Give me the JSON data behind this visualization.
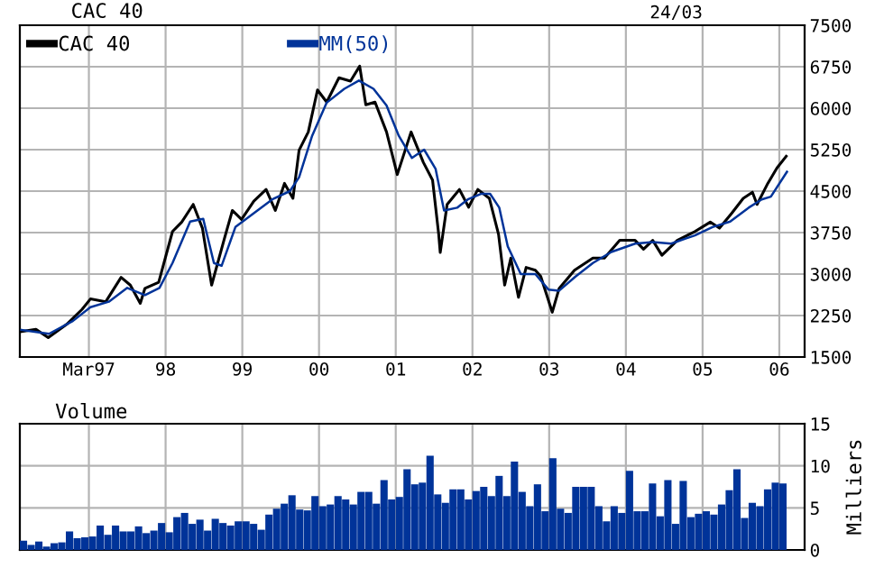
{
  "chart_data": [
    {
      "type": "line",
      "title": "CAC 40",
      "subtitle": "24/03",
      "legend": "top left",
      "grid": true,
      "line_style": "solid",
      "xlim": [
        1996.1,
        2006.33
      ],
      "xticks": [
        {
          "value": 1997,
          "label": "Mar97"
        },
        {
          "value": 1998,
          "label": "98"
        },
        {
          "value": 1999,
          "label": "99"
        },
        {
          "value": 2000,
          "label": "00"
        },
        {
          "value": 2001,
          "label": "01"
        },
        {
          "value": 2002,
          "label": "02"
        },
        {
          "value": 2003,
          "label": "03"
        },
        {
          "value": 2004,
          "label": "04"
        },
        {
          "value": 2005,
          "label": "05"
        },
        {
          "value": 2006,
          "label": "06"
        }
      ],
      "ylim": [
        1500,
        7500
      ],
      "yticks": [
        1500,
        2250,
        3000,
        3750,
        4500,
        5250,
        6000,
        6750,
        7500
      ],
      "series": [
        {
          "name": "CAC 40",
          "color": "#000000",
          "x": [
            1996.12,
            1996.31,
            1996.47,
            1996.71,
            1996.91,
            1997.02,
            1997.22,
            1997.42,
            1997.54,
            1997.67,
            1997.73,
            1997.91,
            1998.09,
            1998.21,
            1998.36,
            1998.48,
            1998.6,
            1998.76,
            1998.87,
            1998.99,
            1999.15,
            1999.31,
            1999.43,
            1999.55,
            1999.66,
            1999.74,
            1999.86,
            1999.98,
            2000.1,
            2000.26,
            2000.41,
            2000.53,
            2000.61,
            2000.73,
            2000.88,
            2001.02,
            2001.2,
            2001.36,
            2001.48,
            2001.56,
            2001.58,
            2001.67,
            2001.83,
            2001.95,
            2002.07,
            2002.22,
            2002.34,
            2002.42,
            2002.5,
            2002.6,
            2002.7,
            2002.82,
            2002.89,
            2003.04,
            2003.13,
            2003.33,
            2003.57,
            2003.72,
            2003.92,
            2004.12,
            2004.23,
            2004.35,
            2004.47,
            2004.67,
            2004.9,
            2005.1,
            2005.22,
            2005.38,
            2005.53,
            2005.65,
            2005.71,
            2005.85,
            2005.97,
            2006.09
          ],
          "values": [
            1960,
            2000,
            1850,
            2090,
            2360,
            2550,
            2500,
            2940,
            2800,
            2470,
            2740,
            2850,
            3770,
            3940,
            4260,
            3830,
            2800,
            3610,
            4150,
            3990,
            4320,
            4530,
            4150,
            4640,
            4370,
            5240,
            5570,
            6330,
            6110,
            6550,
            6490,
            6760,
            6060,
            6110,
            5570,
            4800,
            5570,
            5020,
            4700,
            3720,
            3390,
            4260,
            4530,
            4210,
            4530,
            4370,
            3720,
            2800,
            3290,
            2580,
            3120,
            3070,
            2960,
            2310,
            2740,
            3070,
            3290,
            3290,
            3610,
            3610,
            3450,
            3610,
            3340,
            3610,
            3770,
            3940,
            3830,
            4100,
            4370,
            4480,
            4260,
            4640,
            4920,
            5130
          ]
        },
        {
          "name": "MM(50)",
          "color": "#003399",
          "x": [
            1996.12,
            1996.48,
            1996.79,
            1997.02,
            1997.26,
            1997.5,
            1997.73,
            1997.92,
            1998.09,
            1998.32,
            1998.49,
            1998.63,
            1998.73,
            1998.91,
            1999.15,
            1999.39,
            1999.62,
            1999.74,
            1999.91,
            2000.1,
            2000.33,
            2000.52,
            2000.71,
            2000.88,
            2001.04,
            2001.21,
            2001.37,
            2001.52,
            2001.63,
            2001.8,
            2001.94,
            2002.11,
            2002.23,
            2002.35,
            2002.46,
            2002.63,
            2002.82,
            2002.99,
            2003.13,
            2003.34,
            2003.57,
            2003.81,
            2004.12,
            2004.35,
            2004.59,
            2004.9,
            2005.13,
            2005.36,
            2005.6,
            2005.77,
            2005.89,
            2006.1
          ],
          "values": [
            1990,
            1920,
            2150,
            2400,
            2500,
            2750,
            2620,
            2750,
            3200,
            3950,
            4000,
            3200,
            3150,
            3850,
            4100,
            4350,
            4500,
            4750,
            5500,
            6100,
            6350,
            6500,
            6350,
            6050,
            5500,
            5100,
            5250,
            4900,
            4150,
            4200,
            4350,
            4450,
            4450,
            4200,
            3500,
            3000,
            3000,
            2720,
            2700,
            2950,
            3200,
            3400,
            3550,
            3580,
            3550,
            3700,
            3850,
            3950,
            4200,
            4350,
            4400,
            4850
          ]
        }
      ]
    },
    {
      "type": "bar",
      "title": "Volume",
      "ylabel": "Milliers",
      "grid": true,
      "tick_labels": "y",
      "color": "#003399",
      "xlim": [
        1996.1,
        2006.33
      ],
      "xticks": [
        {
          "value": 1997,
          "label": null
        },
        {
          "value": 1998,
          "label": null
        },
        {
          "value": 1999,
          "label": null
        },
        {
          "value": 2000,
          "label": null
        },
        {
          "value": 2001,
          "label": null
        },
        {
          "value": 2002,
          "label": null
        },
        {
          "value": 2003,
          "label": null
        },
        {
          "value": 2004,
          "label": null
        },
        {
          "value": 2005,
          "label": null
        },
        {
          "value": 2006,
          "label": null
        }
      ],
      "ylim": [
        0,
        15
      ],
      "yticks": [
        0,
        5,
        10,
        15
      ],
      "x": [
        1996.1,
        1996.2,
        1996.3,
        1996.4,
        1996.5,
        1996.6,
        1996.7,
        1996.8,
        1996.9,
        1997.0,
        1997.1,
        1997.2,
        1997.3,
        1997.4,
        1997.5,
        1997.6,
        1997.7,
        1997.8,
        1997.9,
        1998.0,
        1998.1,
        1998.2,
        1998.3,
        1998.4,
        1998.5,
        1998.6,
        1998.7,
        1998.8,
        1998.9,
        1999.0,
        1999.1,
        1999.2,
        1999.3,
        1999.4,
        1999.5,
        1999.6,
        1999.7,
        1999.8,
        1999.9,
        2000.0,
        2000.1,
        2000.2,
        2000.3,
        2000.4,
        2000.5,
        2000.6,
        2000.7,
        2000.8,
        2000.9,
        2001.0,
        2001.1,
        2001.2,
        2001.3,
        2001.4,
        2001.5,
        2001.6,
        2001.7,
        2001.8,
        2001.9,
        2002.0,
        2002.1,
        2002.2,
        2002.3,
        2002.4,
        2002.5,
        2002.6,
        2002.7,
        2002.8,
        2002.9,
        2003.0,
        2003.1,
        2003.2,
        2003.3,
        2003.4,
        2003.5,
        2003.6,
        2003.7,
        2003.8,
        2003.9,
        2004.0,
        2004.1,
        2004.2,
        2004.3,
        2004.4,
        2004.5,
        2004.6,
        2004.7,
        2004.8,
        2004.9,
        2005.0,
        2005.1,
        2005.2,
        2005.3,
        2005.4,
        2005.5,
        2005.6,
        2005.7,
        2005.8,
        2005.9,
        2006.0
      ],
      "values": [
        1.1,
        0.6,
        1.0,
        0.4,
        0.8,
        0.9,
        2.2,
        1.4,
        1.5,
        1.6,
        2.9,
        1.8,
        2.9,
        2.2,
        2.2,
        2.8,
        2.0,
        2.3,
        3.2,
        2.1,
        3.9,
        4.4,
        3.1,
        3.6,
        2.3,
        3.7,
        3.2,
        2.9,
        3.4,
        3.4,
        3.1,
        2.4,
        4.2,
        4.9,
        5.5,
        6.5,
        4.8,
        4.7,
        6.4,
        5.2,
        5.4,
        6.4,
        6.0,
        5.4,
        6.9,
        6.9,
        5.5,
        8.3,
        6.0,
        6.3,
        9.6,
        7.8,
        8.0,
        11.2,
        6.6,
        5.6,
        7.2,
        7.2,
        6.0,
        7.0,
        7.5,
        6.4,
        8.8,
        6.4,
        10.5,
        6.9,
        5.2,
        7.8,
        4.6,
        10.9,
        4.9,
        4.4,
        7.5,
        7.5,
        7.5,
        5.2,
        3.4,
        5.2,
        4.4,
        9.4,
        4.6,
        4.6,
        7.9,
        4.0,
        8.3,
        3.1,
        8.2,
        3.9,
        4.3,
        4.6,
        4.2,
        5.4,
        7.1,
        9.6,
        3.8,
        5.6,
        5.2,
        7.2,
        8.0,
        7.9
      ]
    }
  ]
}
